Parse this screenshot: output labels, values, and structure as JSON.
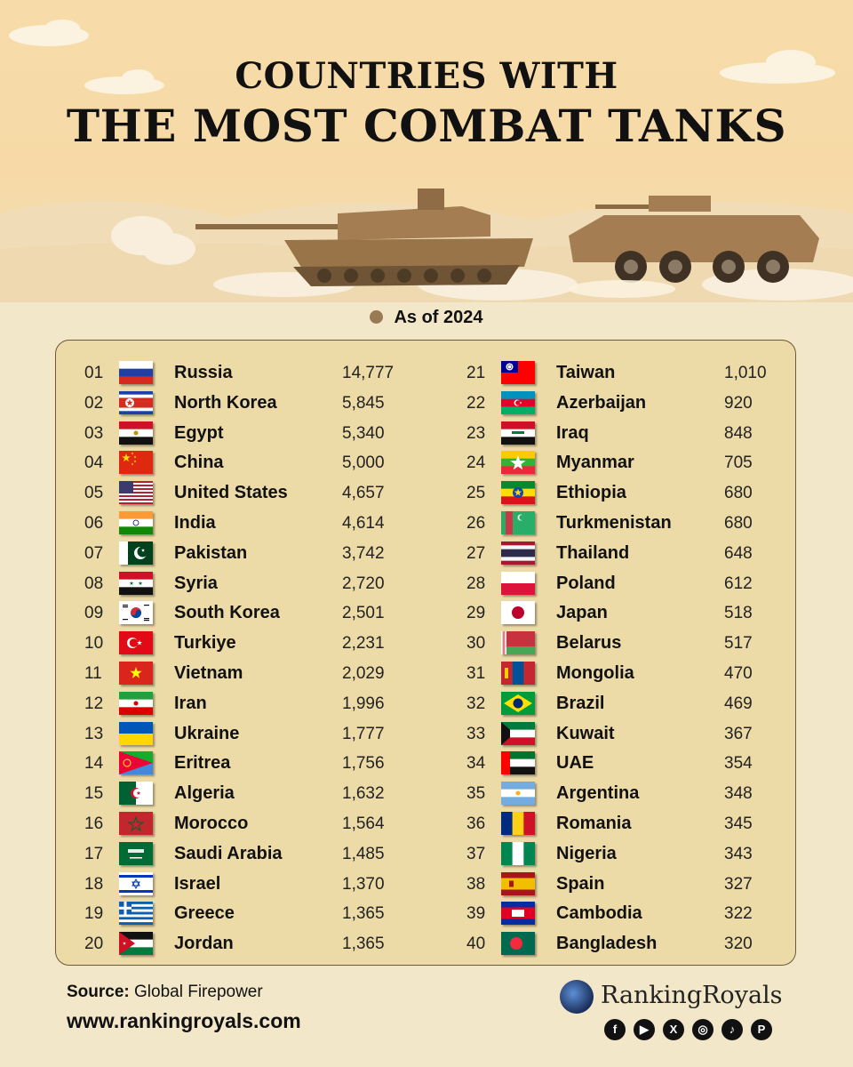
{
  "title": {
    "line1": "COUNTRIES WITH",
    "line2": "THE MOST COMBAT TANKS"
  },
  "as_of": "As of 2024",
  "rankings": [
    {
      "rank": "01",
      "country": "Russia",
      "tanks": "14,777",
      "flag": "russia"
    },
    {
      "rank": "02",
      "country": "North Korea",
      "tanks": "5,845",
      "flag": "north-korea"
    },
    {
      "rank": "03",
      "country": "Egypt",
      "tanks": "5,340",
      "flag": "egypt"
    },
    {
      "rank": "04",
      "country": "China",
      "tanks": "5,000",
      "flag": "china"
    },
    {
      "rank": "05",
      "country": "United States",
      "tanks": "4,657",
      "flag": "united-states"
    },
    {
      "rank": "06",
      "country": "India",
      "tanks": "4,614",
      "flag": "india"
    },
    {
      "rank": "07",
      "country": "Pakistan",
      "tanks": "3,742",
      "flag": "pakistan"
    },
    {
      "rank": "08",
      "country": "Syria",
      "tanks": "2,720",
      "flag": "syria"
    },
    {
      "rank": "09",
      "country": "South Korea",
      "tanks": "2,501",
      "flag": "south-korea"
    },
    {
      "rank": "10",
      "country": "Turkiye",
      "tanks": "2,231",
      "flag": "turkiye"
    },
    {
      "rank": "11",
      "country": "Vietnam",
      "tanks": "2,029",
      "flag": "vietnam"
    },
    {
      "rank": "12",
      "country": "Iran",
      "tanks": "1,996",
      "flag": "iran"
    },
    {
      "rank": "13",
      "country": "Ukraine",
      "tanks": "1,777",
      "flag": "ukraine"
    },
    {
      "rank": "14",
      "country": "Eritrea",
      "tanks": "1,756",
      "flag": "eritrea"
    },
    {
      "rank": "15",
      "country": "Algeria",
      "tanks": "1,632",
      "flag": "algeria"
    },
    {
      "rank": "16",
      "country": "Morocco",
      "tanks": "1,564",
      "flag": "morocco"
    },
    {
      "rank": "17",
      "country": "Saudi Arabia",
      "tanks": "1,485",
      "flag": "saudi-arabia"
    },
    {
      "rank": "18",
      "country": "Israel",
      "tanks": "1,370",
      "flag": "israel"
    },
    {
      "rank": "19",
      "country": "Greece",
      "tanks": "1,365",
      "flag": "greece"
    },
    {
      "rank": "20",
      "country": "Jordan",
      "tanks": "1,365",
      "flag": "jordan"
    },
    {
      "rank": "21",
      "country": "Taiwan",
      "tanks": "1,010",
      "flag": "taiwan"
    },
    {
      "rank": "22",
      "country": "Azerbaijan",
      "tanks": "920",
      "flag": "azerbaijan"
    },
    {
      "rank": "23",
      "country": "Iraq",
      "tanks": "848",
      "flag": "iraq"
    },
    {
      "rank": "24",
      "country": "Myanmar",
      "tanks": "705",
      "flag": "myanmar"
    },
    {
      "rank": "25",
      "country": "Ethiopia",
      "tanks": "680",
      "flag": "ethiopia"
    },
    {
      "rank": "26",
      "country": "Turkmenistan",
      "tanks": "680",
      "flag": "turkmenistan"
    },
    {
      "rank": "27",
      "country": "Thailand",
      "tanks": "648",
      "flag": "thailand"
    },
    {
      "rank": "28",
      "country": "Poland",
      "tanks": "612",
      "flag": "poland"
    },
    {
      "rank": "29",
      "country": "Japan",
      "tanks": "518",
      "flag": "japan"
    },
    {
      "rank": "30",
      "country": "Belarus",
      "tanks": "517",
      "flag": "belarus"
    },
    {
      "rank": "31",
      "country": "Mongolia",
      "tanks": "470",
      "flag": "mongolia"
    },
    {
      "rank": "32",
      "country": "Brazil",
      "tanks": "469",
      "flag": "brazil"
    },
    {
      "rank": "33",
      "country": "Kuwait",
      "tanks": "367",
      "flag": "kuwait"
    },
    {
      "rank": "34",
      "country": "UAE",
      "tanks": "354",
      "flag": "uae"
    },
    {
      "rank": "35",
      "country": "Argentina",
      "tanks": "348",
      "flag": "argentina"
    },
    {
      "rank": "36",
      "country": "Romania",
      "tanks": "345",
      "flag": "romania"
    },
    {
      "rank": "37",
      "country": "Nigeria",
      "tanks": "343",
      "flag": "nigeria"
    },
    {
      "rank": "38",
      "country": "Spain",
      "tanks": "327",
      "flag": "spain"
    },
    {
      "rank": "39",
      "country": "Cambodia",
      "tanks": "322",
      "flag": "cambodia"
    },
    {
      "rank": "40",
      "country": "Bangladesh",
      "tanks": "320",
      "flag": "bangladesh"
    }
  ],
  "footer": {
    "source_label": "Source:",
    "source_value": "Global Firepower",
    "website": "www.rankingroyals.com",
    "brand_name": "RankingRoyals",
    "brand_logo_icon": "globe-logo-icon",
    "socials": [
      {
        "icon": "facebook-icon",
        "glyph": "f"
      },
      {
        "icon": "youtube-icon",
        "glyph": "▶"
      },
      {
        "icon": "x-icon",
        "glyph": "X"
      },
      {
        "icon": "instagram-icon",
        "glyph": "◎"
      },
      {
        "icon": "tiktok-icon",
        "glyph": "♪"
      },
      {
        "icon": "pinterest-icon",
        "glyph": "P"
      }
    ]
  },
  "colors": {
    "panel": "#ecdaa7",
    "background": "#f3e7c9",
    "sky": "#f6d9a6",
    "tank": "#a47d52"
  }
}
